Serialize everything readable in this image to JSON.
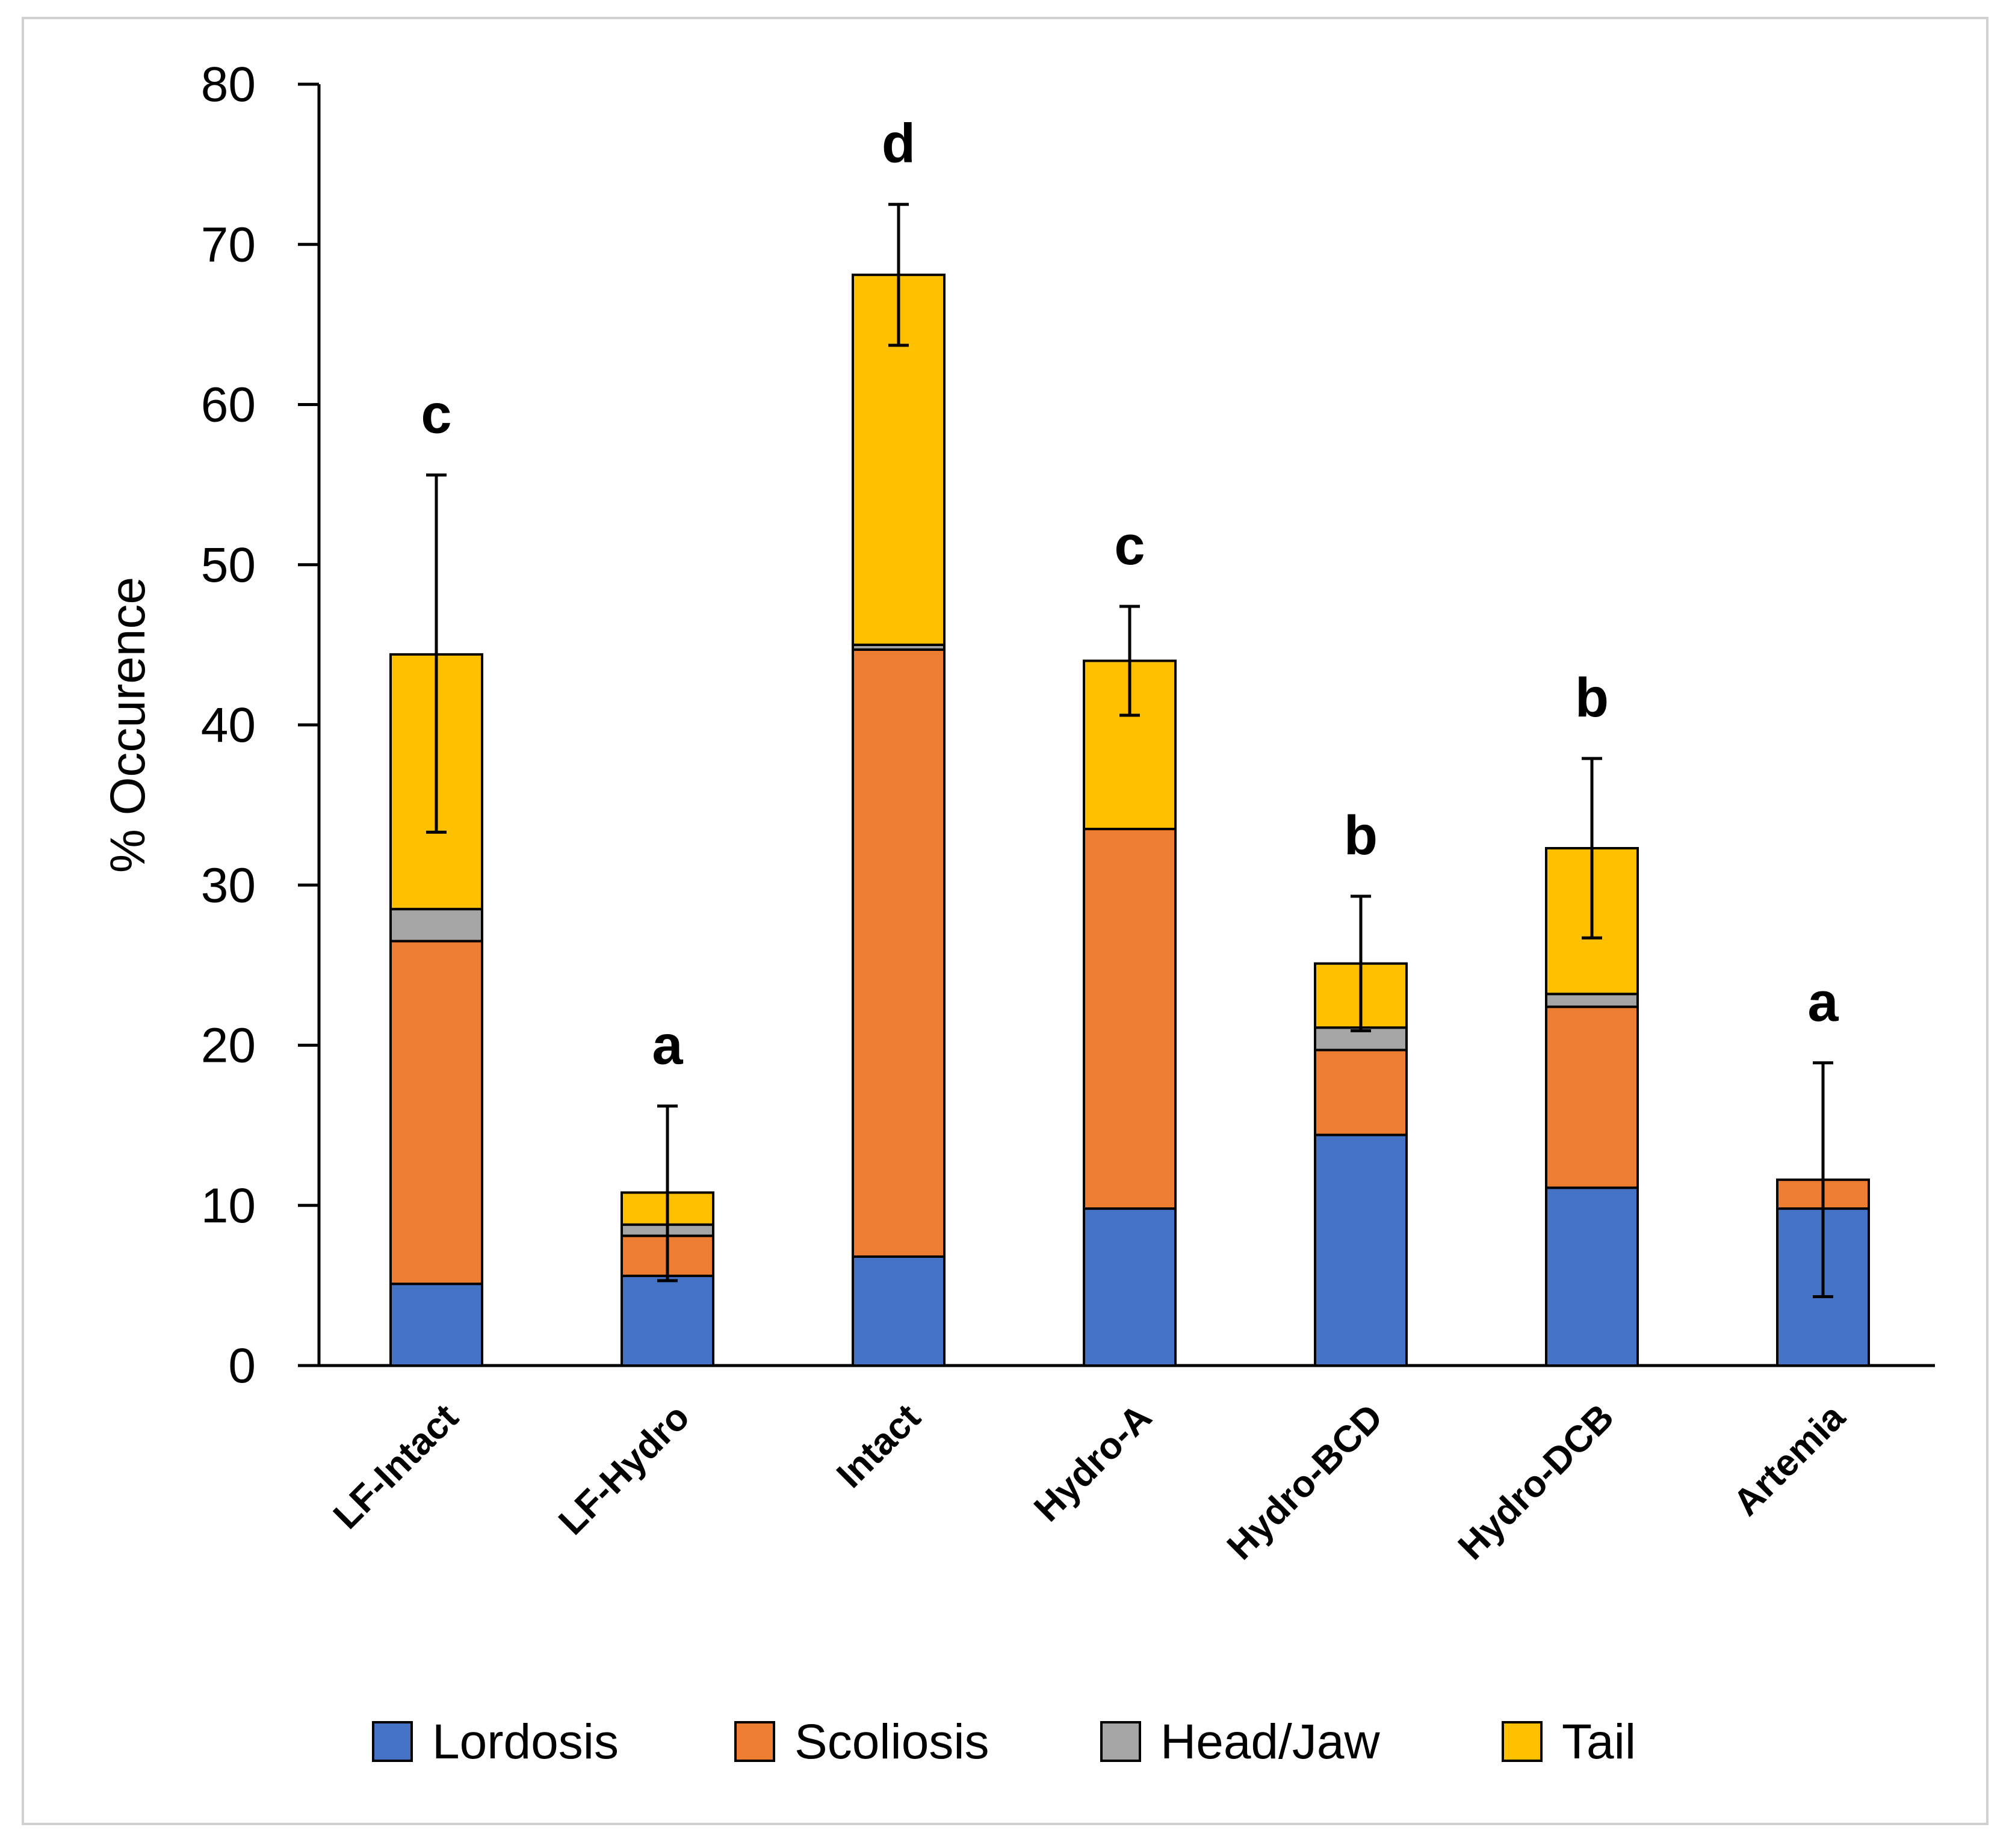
{
  "chart_data": {
    "type": "bar",
    "stacked": true,
    "title": "",
    "xlabel": "",
    "ylabel": "% Occurence",
    "ylim": [
      0,
      80
    ],
    "yticks": [
      0,
      10,
      20,
      30,
      40,
      50,
      60,
      70,
      80
    ],
    "grid": false,
    "legend_position": "bottom",
    "categories": [
      "LF-Intact",
      "LF-Hydro",
      "Intact",
      "Hydro-A",
      "Hydro-BCD",
      "Hydro-DCB",
      "Artemia"
    ],
    "series": [
      {
        "name": "Lordosis",
        "color": "#4472C4",
        "values": [
          5.1,
          5.6,
          6.8,
          9.8,
          14.4,
          11.1,
          9.8
        ]
      },
      {
        "name": "Scoliosis",
        "color": "#ED7D31",
        "values": [
          21.4,
          2.5,
          37.9,
          23.7,
          5.3,
          11.3,
          1.8
        ]
      },
      {
        "name": "Head/Jaw",
        "color": "#A5A5A5",
        "values": [
          2.0,
          0.7,
          0.3,
          0.0,
          1.4,
          0.8,
          0.0
        ]
      },
      {
        "name": "Tail",
        "color": "#FFC000",
        "values": [
          15.9,
          2.0,
          23.1,
          10.5,
          4.0,
          9.1,
          0.0
        ]
      }
    ],
    "error_bar_ranges": [
      [
        33.3,
        55.6
      ],
      [
        5.3,
        16.2
      ],
      [
        63.7,
        72.5
      ],
      [
        40.6,
        47.4
      ],
      [
        20.9,
        29.3
      ],
      [
        26.7,
        37.9
      ],
      [
        4.3,
        18.9
      ]
    ],
    "significance_letters": [
      "c",
      "a",
      "d",
      "c",
      "b",
      "b",
      "a"
    ]
  }
}
